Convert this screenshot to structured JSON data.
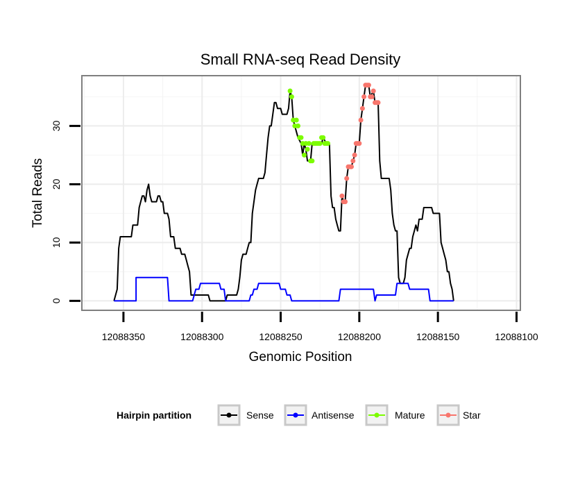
{
  "chart_data": {
    "type": "line",
    "title": "Small RNA-seq Read Density",
    "xlabel": "Genomic Position",
    "ylabel": "Total Reads",
    "x_reversed": true,
    "xlim": [
      12088376,
      12088098
    ],
    "ylim": [
      -1.5,
      38.5
    ],
    "xticks": [
      12088350,
      12088300,
      12088250,
      12088200,
      12088150,
      12088100
    ],
    "xtick_labels": [
      "12088350",
      "12088300",
      "12088250",
      "12088200",
      "12088150",
      "12088100"
    ],
    "yticks": [
      0,
      10,
      20,
      30
    ],
    "ytick_labels": [
      "0",
      "10",
      "20",
      "30"
    ],
    "grid": true,
    "legend": {
      "title": "Hairpin partition",
      "position": "bottom",
      "entries": [
        "Sense",
        "Antisense",
        "Mature",
        "Star"
      ]
    },
    "series": [
      {
        "name": "Sense",
        "color": "#000000",
        "style": "line",
        "points": [
          [
            12088356,
            0
          ],
          [
            12088354,
            2
          ],
          [
            12088353,
            9
          ],
          [
            12088352,
            11
          ],
          [
            12088345,
            11
          ],
          [
            12088344,
            13
          ],
          [
            12088341,
            13
          ],
          [
            12088340,
            16
          ],
          [
            12088339,
            17
          ],
          [
            12088338,
            18
          ],
          [
            12088337,
            18
          ],
          [
            12088336,
            17
          ],
          [
            12088335,
            19
          ],
          [
            12088334,
            20
          ],
          [
            12088333,
            18
          ],
          [
            12088332,
            17
          ],
          [
            12088329,
            17
          ],
          [
            12088328,
            18
          ],
          [
            12088327,
            18
          ],
          [
            12088326,
            17
          ],
          [
            12088325,
            17
          ],
          [
            12088324,
            15
          ],
          [
            12088322,
            15
          ],
          [
            12088321,
            14
          ],
          [
            12088320,
            11
          ],
          [
            12088318,
            11
          ],
          [
            12088317,
            9
          ],
          [
            12088314,
            9
          ],
          [
            12088313,
            8
          ],
          [
            12088311,
            8
          ],
          [
            12088310,
            7
          ],
          [
            12088309,
            6
          ],
          [
            12088308,
            5
          ],
          [
            12088307,
            1
          ],
          [
            12088296,
            1
          ],
          [
            12088295,
            0
          ],
          [
            12088285,
            0
          ],
          [
            12088284,
            1
          ],
          [
            12088278,
            1
          ],
          [
            12088277,
            2
          ],
          [
            12088276,
            4
          ],
          [
            12088275,
            7
          ],
          [
            12088274,
            8
          ],
          [
            12088272,
            8
          ],
          [
            12088271,
            9
          ],
          [
            12088270,
            10
          ],
          [
            12088269,
            10
          ],
          [
            12088268,
            15
          ],
          [
            12088267,
            17
          ],
          [
            12088266,
            19
          ],
          [
            12088265,
            20
          ],
          [
            12088264,
            21
          ],
          [
            12088261,
            21
          ],
          [
            12088260,
            22
          ],
          [
            12088259,
            25
          ],
          [
            12088258,
            28
          ],
          [
            12088257,
            30
          ],
          [
            12088256,
            30
          ],
          [
            12088255,
            32
          ],
          [
            12088254,
            34
          ],
          [
            12088253,
            34
          ],
          [
            12088252,
            33
          ],
          [
            12088250,
            33
          ],
          [
            12088249,
            32
          ],
          [
            12088246,
            32
          ],
          [
            12088245,
            33
          ],
          [
            12088244,
            36
          ],
          [
            12088243,
            35
          ],
          [
            12088242,
            31
          ],
          [
            12088241,
            30
          ],
          [
            12088240,
            29
          ],
          [
            12088239,
            28
          ],
          [
            12088237,
            27
          ],
          [
            12088236,
            25
          ],
          [
            12088235,
            27
          ],
          [
            12088234,
            26
          ],
          [
            12088233,
            24
          ],
          [
            12088231,
            24
          ],
          [
            12088230,
            27
          ],
          [
            12088224,
            27
          ],
          [
            12088223,
            28
          ],
          [
            12088221,
            27
          ],
          [
            12088219,
            27
          ],
          [
            12088218,
            18
          ],
          [
            12088217,
            16
          ],
          [
            12088216,
            16
          ],
          [
            12088215,
            14
          ],
          [
            12088214,
            13
          ],
          [
            12088213,
            12
          ],
          [
            12088212,
            12
          ],
          [
            12088211,
            18
          ],
          [
            12088210,
            17
          ],
          [
            12088209,
            17
          ],
          [
            12088208,
            21
          ],
          [
            12088207,
            23
          ],
          [
            12088205,
            23
          ],
          [
            12088204,
            24
          ],
          [
            12088203,
            25
          ],
          [
            12088202,
            27
          ],
          [
            12088200,
            27
          ],
          [
            12088199,
            31
          ],
          [
            12088198,
            33
          ],
          [
            12088197,
            35
          ],
          [
            12088196,
            37
          ],
          [
            12088194,
            37
          ],
          [
            12088193,
            35
          ],
          [
            12088191,
            36
          ],
          [
            12088190,
            34
          ],
          [
            12088188,
            34
          ],
          [
            12088187,
            24
          ],
          [
            12088186,
            21
          ],
          [
            12088181,
            21
          ],
          [
            12088180,
            19
          ],
          [
            12088179,
            15
          ],
          [
            12088178,
            13
          ],
          [
            12088177,
            12
          ],
          [
            12088176,
            12
          ],
          [
            12088175,
            4
          ],
          [
            12088174,
            3
          ],
          [
            12088172,
            3
          ],
          [
            12088171,
            4
          ],
          [
            12088170,
            7
          ],
          [
            12088169,
            8
          ],
          [
            12088168,
            9
          ],
          [
            12088167,
            9
          ],
          [
            12088166,
            11
          ],
          [
            12088165,
            12
          ],
          [
            12088164,
            13
          ],
          [
            12088163,
            12
          ],
          [
            12088162,
            14
          ],
          [
            12088160,
            14
          ],
          [
            12088159,
            16
          ],
          [
            12088154,
            16
          ],
          [
            12088153,
            15
          ],
          [
            12088149,
            15
          ],
          [
            12088148,
            10
          ],
          [
            12088147,
            9
          ],
          [
            12088146,
            8
          ],
          [
            12088145,
            7
          ],
          [
            12088144,
            5
          ],
          [
            12088143,
            5
          ],
          [
            12088142,
            3
          ],
          [
            12088141,
            2
          ],
          [
            12088140,
            0
          ]
        ]
      },
      {
        "name": "Antisense",
        "color": "#0000ff",
        "style": "line",
        "points": [
          [
            12088356,
            0
          ],
          [
            12088342,
            0
          ],
          [
            12088342,
            4
          ],
          [
            12088322,
            4
          ],
          [
            12088321,
            0
          ],
          [
            12088306,
            0
          ],
          [
            12088305,
            1
          ],
          [
            12088304,
            2
          ],
          [
            12088302,
            2
          ],
          [
            12088301,
            3
          ],
          [
            12088289,
            3
          ],
          [
            12088288,
            2
          ],
          [
            12088286,
            2
          ],
          [
            12088285,
            0
          ],
          [
            12088270,
            0
          ],
          [
            12088269,
            1
          ],
          [
            12088268,
            1
          ],
          [
            12088267,
            2
          ],
          [
            12088265,
            2
          ],
          [
            12088264,
            3
          ],
          [
            12088251,
            3
          ],
          [
            12088250,
            2
          ],
          [
            12088247,
            2
          ],
          [
            12088246,
            1
          ],
          [
            12088244,
            1
          ],
          [
            12088243,
            0
          ],
          [
            12088213,
            0
          ],
          [
            12088212,
            2
          ],
          [
            12088191,
            2
          ],
          [
            12088190,
            0
          ],
          [
            12088189,
            1
          ],
          [
            12088177,
            1
          ],
          [
            12088176,
            3
          ],
          [
            12088169,
            3
          ],
          [
            12088168,
            2
          ],
          [
            12088156,
            2
          ],
          [
            12088155,
            0
          ],
          [
            12088140,
            0
          ]
        ]
      },
      {
        "name": "Mature",
        "color": "#7cfc00",
        "style": "points",
        "points": [
          [
            12088244,
            36
          ],
          [
            12088243,
            35
          ],
          [
            12088242,
            31
          ],
          [
            12088241,
            30
          ],
          [
            12088240,
            31
          ],
          [
            12088239,
            30
          ],
          [
            12088238,
            28
          ],
          [
            12088237,
            28
          ],
          [
            12088236,
            27
          ],
          [
            12088235,
            25
          ],
          [
            12088234,
            27
          ],
          [
            12088233,
            26
          ],
          [
            12088232,
            27
          ],
          [
            12088231,
            24
          ],
          [
            12088230,
            24
          ],
          [
            12088229,
            27
          ],
          [
            12088228,
            27
          ],
          [
            12088227,
            27
          ],
          [
            12088226,
            27
          ],
          [
            12088225,
            27
          ],
          [
            12088224,
            28
          ],
          [
            12088223,
            28
          ],
          [
            12088222,
            27
          ],
          [
            12088221,
            27
          ],
          [
            12088220,
            27
          ]
        ]
      },
      {
        "name": "Star",
        "color": "#f8766d",
        "style": "points",
        "points": [
          [
            12088211,
            18
          ],
          [
            12088210,
            17
          ],
          [
            12088209,
            17
          ],
          [
            12088208,
            21
          ],
          [
            12088207,
            23
          ],
          [
            12088206,
            23
          ],
          [
            12088205,
            23
          ],
          [
            12088204,
            24
          ],
          [
            12088203,
            25
          ],
          [
            12088202,
            27
          ],
          [
            12088201,
            27
          ],
          [
            12088200,
            27
          ],
          [
            12088199,
            31
          ],
          [
            12088198,
            33
          ],
          [
            12088197,
            35
          ],
          [
            12088196,
            37
          ],
          [
            12088195,
            37
          ],
          [
            12088194,
            37
          ],
          [
            12088193,
            35
          ],
          [
            12088192,
            35
          ],
          [
            12088191,
            36
          ],
          [
            12088190,
            34
          ],
          [
            12088189,
            34
          ],
          [
            12088188,
            34
          ]
        ]
      }
    ]
  }
}
